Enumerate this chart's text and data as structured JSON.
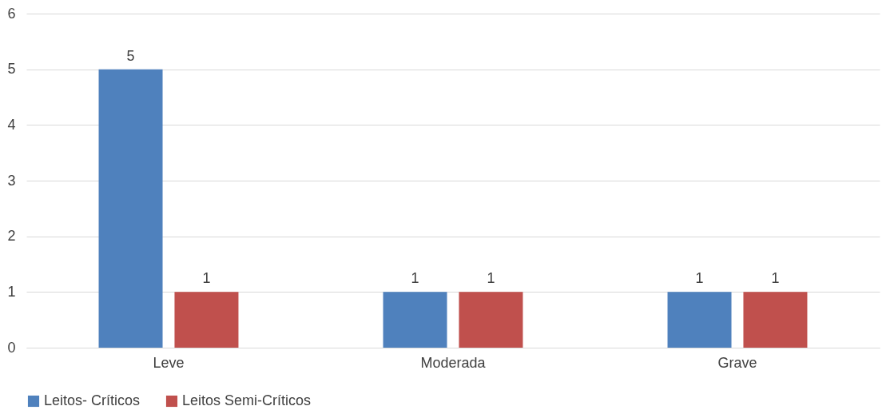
{
  "chart_data": {
    "type": "bar",
    "categories": [
      "Leve",
      "Moderada",
      "Grave"
    ],
    "series": [
      {
        "name": "Leitos- Críticos",
        "color": "#4f81bd",
        "values": [
          5,
          1,
          1
        ]
      },
      {
        "name": "Leitos Semi-Críticos",
        "color": "#c0504d",
        "values": [
          1,
          1,
          1
        ]
      }
    ],
    "ylim": [
      0,
      6
    ],
    "yticks": [
      0,
      1,
      2,
      3,
      4,
      5,
      6
    ],
    "grid": "y",
    "legend": "bottom",
    "data_labels": true
  }
}
